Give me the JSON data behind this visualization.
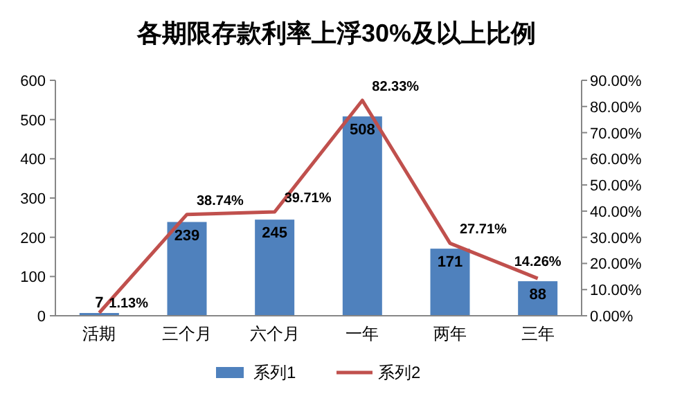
{
  "chart_data": {
    "type": "bar",
    "title": "各期限存款利率上浮30%及以上比例",
    "categories": [
      "活期",
      "三个月",
      "六个月",
      "一年",
      "两年",
      "三年"
    ],
    "series": [
      {
        "name": "系列1",
        "color": "#4f81bd",
        "values": [
          7,
          239,
          245,
          508,
          171,
          88
        ],
        "value_labels": [
          "7",
          "239",
          "245",
          "508",
          "171",
          "88"
        ]
      },
      {
        "name": "系列2",
        "type": "line",
        "axis": "y2",
        "color": "#c0504d",
        "values": [
          1.13,
          38.74,
          39.71,
          82.33,
          27.71,
          14.26
        ],
        "value_labels": [
          "1.13%",
          "38.74%",
          "39.71%",
          "82.33%",
          "27.71%",
          "14.26%"
        ]
      }
    ],
    "ylim": [
      0,
      600
    ],
    "yticks": [
      0,
      100,
      200,
      300,
      400,
      500,
      600
    ],
    "y2lim": [
      0,
      90
    ],
    "y2ticks": [
      {
        "value": 0,
        "label": "0.00%"
      },
      {
        "value": 10,
        "label": "10.00%"
      },
      {
        "value": 20,
        "label": "20.00%"
      },
      {
        "value": 30,
        "label": "30.00%"
      },
      {
        "value": 40,
        "label": "40.00%"
      },
      {
        "value": 50,
        "label": "50.00%"
      },
      {
        "value": 60,
        "label": "60.00%"
      },
      {
        "value": 70,
        "label": "70.00%"
      },
      {
        "value": 80,
        "label": "80.00%"
      },
      {
        "value": 90,
        "label": "90.00%"
      }
    ],
    "legend": "bottom",
    "marker": "none",
    "line_style": "solid"
  }
}
